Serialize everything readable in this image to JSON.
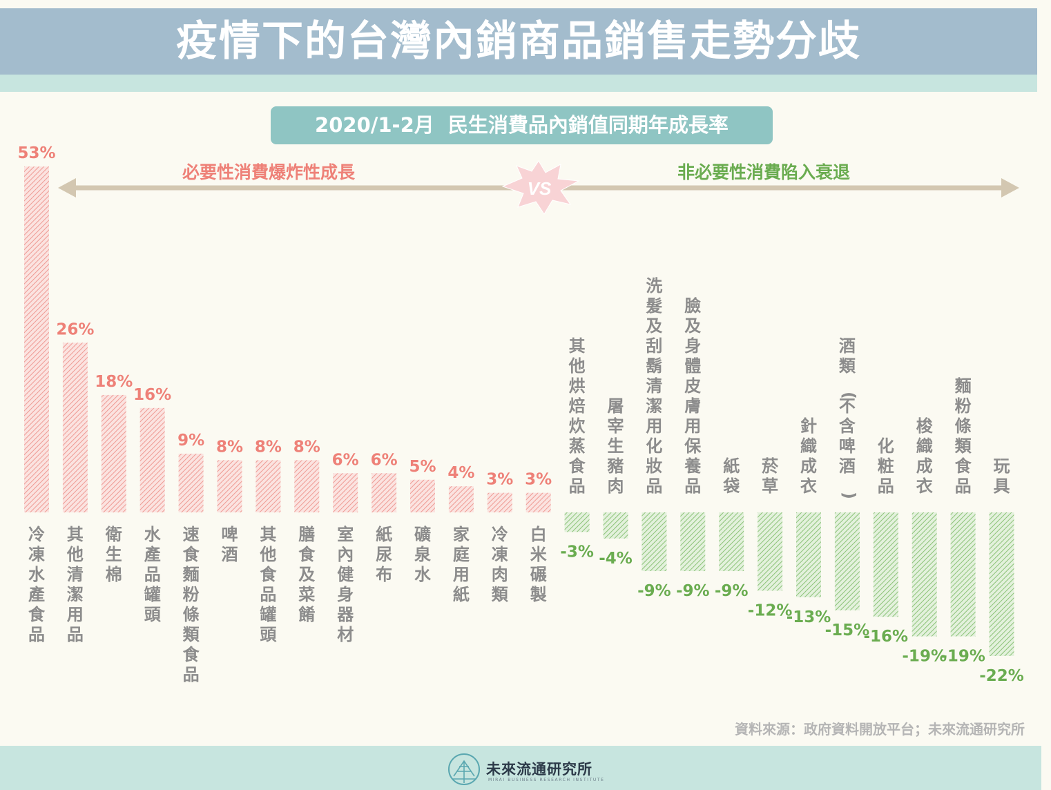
{
  "title": "疫情下的台灣內銷商品銷售走勢分歧",
  "subtitle": "2020/1-2月  民生消費品內銷值同期年成長率",
  "left_banner": "必要性消費爆炸性成長",
  "right_banner": "非必要性消費陷入衰退",
  "vs_text": "VS",
  "source": "資料來源：政府資料開放平台；未來流通研究所",
  "logo": {
    "name": "未來流通研究所",
    "sub": "MIRAI BUSINESS RESEARCH INSTITUTE"
  },
  "colors": {
    "positive": "#ee8178",
    "negative": "#6aac50",
    "title_bg": "#a3bccd",
    "accent": "#8fc5c3"
  },
  "chart_data": {
    "type": "bar",
    "unit": "%",
    "categories": [
      "冷凍水產食品",
      "其他清潔用品",
      "衛生棉",
      "水產品罐頭",
      "速食麵粉條類食品",
      "啤酒",
      "其他食品罐頭",
      "膳食及菜餚",
      "室內健身器材",
      "紙尿布",
      "礦泉水",
      "家庭用紙",
      "冷凍肉類",
      "白米碾製",
      "其他烘焙炊蒸食品",
      "屠宰生豬肉",
      "洗髮及刮鬍清潔用化妝品",
      "臉及身體皮膚用保養品",
      "紙袋",
      "菸草",
      "針織成衣",
      "酒類(不含啤酒)",
      "化粧品",
      "梭織成衣",
      "麵粉條類食品",
      "玩具"
    ],
    "values": [
      53,
      26,
      18,
      16,
      9,
      8,
      8,
      8,
      6,
      6,
      5,
      4,
      3,
      3,
      -3,
      -4,
      -9,
      -9,
      -9,
      -12,
      -13,
      -15,
      -16,
      -19,
      -19,
      -22
    ],
    "labels": [
      "53%",
      "26%",
      "18%",
      "16%",
      "9%",
      "8%",
      "8%",
      "8%",
      "6%",
      "6%",
      "5%",
      "4%",
      "3%",
      "3%",
      "-3%",
      "-4%",
      "-9%",
      "-9%",
      "-9%",
      "-12%",
      "-13%",
      "-15%",
      "-16%",
      "-19%",
      "-19%",
      "-22%"
    ]
  }
}
